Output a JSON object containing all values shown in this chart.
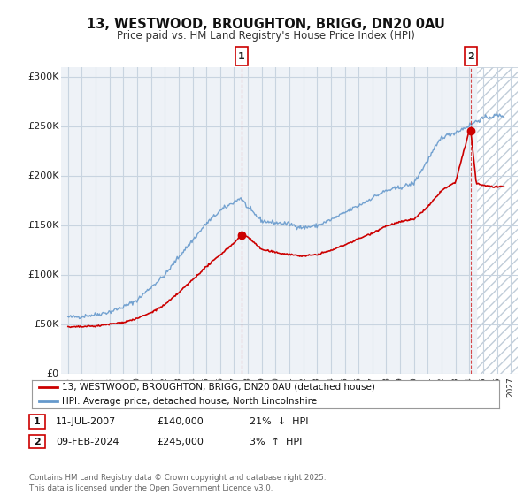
{
  "title": "13, WESTWOOD, BROUGHTON, BRIGG, DN20 0AU",
  "subtitle": "Price paid vs. HM Land Registry's House Price Index (HPI)",
  "legend_entry1": "13, WESTWOOD, BROUGHTON, BRIGG, DN20 0AU (detached house)",
  "legend_entry2": "HPI: Average price, detached house, North Lincolnshire",
  "sale1_date": "11-JUL-2007",
  "sale1_price": "£140,000",
  "sale1_hpi": "21%  ↓  HPI",
  "sale1_year": 2007.53,
  "sale1_value": 140000,
  "sale2_date": "09-FEB-2024",
  "sale2_price": "£245,000",
  "sale2_hpi": "3%  ↑  HPI",
  "sale2_year": 2024.11,
  "sale2_value": 245000,
  "footer": "Contains HM Land Registry data © Crown copyright and database right 2025.\nThis data is licensed under the Open Government Licence v3.0.",
  "xlim": [
    1994.5,
    2027.5
  ],
  "ylim": [
    0,
    310000
  ],
  "yticks": [
    0,
    50000,
    100000,
    150000,
    200000,
    250000,
    300000
  ],
  "ytick_labels": [
    "£0",
    "£50K",
    "£100K",
    "£150K",
    "£200K",
    "£250K",
    "£300K"
  ],
  "red_color": "#cc0000",
  "blue_color": "#6699cc",
  "bg_color": "#eef2f7",
  "grid_color": "#c8d4e0",
  "hatch_color": "#c0ccd8",
  "hatch_start": 2024.5
}
